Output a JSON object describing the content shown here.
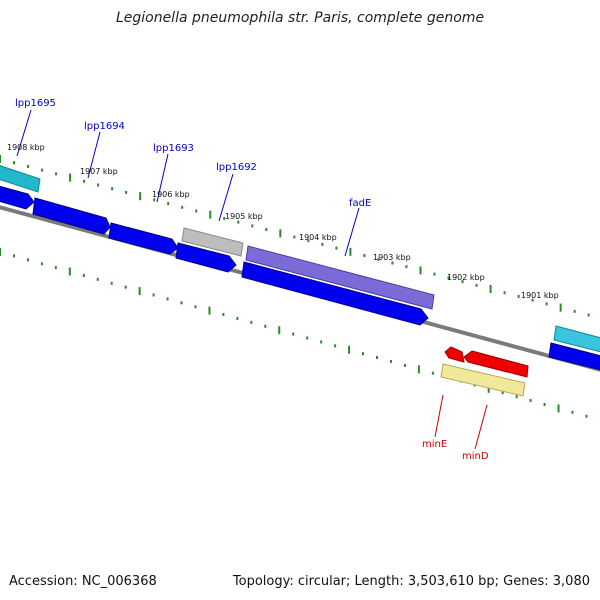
{
  "title": "Legionella pneumophila str. Paris, complete genome",
  "footer": {
    "accession": "Accession: NC_006368",
    "summary": "Topology: circular; Length: 3,503,610 bp; Genes: 3,080"
  },
  "colors": {
    "backbone": "#7a7a7a",
    "tick": "#2a8a2a",
    "plus_gene_label": "#0000cc",
    "minus_gene_label": "#cc0000",
    "cds_blue": "#0000ee",
    "cyan": "#22b8cc",
    "gray": "#aaaaaa",
    "purple": "#6a5acd",
    "red": "#ee0000",
    "yellow": "#e8dc8a"
  },
  "scale_labels": [
    "1908 kbp",
    "1907 kbp",
    "1906 kbp",
    "1905 kbp",
    "1904 kbp",
    "1903 kbp",
    "1902 kbp",
    "1901 kbp"
  ],
  "gene_labels": [
    {
      "text": "lpp1695",
      "strand": "plus"
    },
    {
      "text": "lpp1694",
      "strand": "plus"
    },
    {
      "text": "lpp1693",
      "strand": "plus"
    },
    {
      "text": "lpp1692",
      "strand": "plus"
    },
    {
      "text": "fadE",
      "strand": "plus"
    },
    {
      "text": "minE",
      "strand": "minus"
    },
    {
      "text": "minD",
      "strand": "minus"
    }
  ]
}
